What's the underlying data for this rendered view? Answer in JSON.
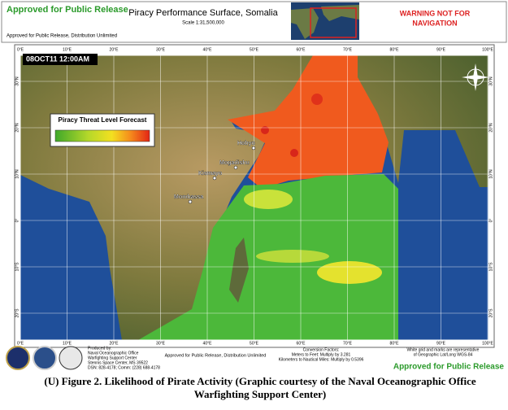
{
  "header": {
    "release_top": "Approved for Public Release",
    "title": "Piracy Performance Surface, Somalia",
    "scale": "Scale 1:31,500,000",
    "distribution": "Approved for Public Release, Distribution Unlimited",
    "warning": [
      "WARNING NOT FOR",
      "NAVIGATION"
    ]
  },
  "map": {
    "timestamp": "08OCT11 12:00AM",
    "legend_title": "Piracy Threat Level Forecast",
    "places": [
      "Hobyo",
      "Mogadishu",
      "Kismayo",
      "Mombassa"
    ],
    "lon_labels": [
      "0°E",
      "10°E",
      "20°E",
      "30°E",
      "40°E",
      "50°E",
      "60°E",
      "70°E",
      "80°E",
      "90°E",
      "100°E"
    ],
    "lat_labels": [
      "30°N",
      "20°N",
      "10°N",
      "0°",
      "10°S",
      "20°S"
    ]
  },
  "footer": {
    "produced_by": [
      "Produced by:",
      "Naval Oceanographic Office",
      "Warfighting Support Center",
      "Stennis Space Center, MS 39522",
      "DSN: 828-4178; Comm: (228) 688-4178"
    ],
    "distribution": "Approved for Public Release, Distribution Unlimited",
    "conversion": [
      "Conversion Factors:",
      "Meters to Feet: Multiply by 3.281",
      "Kilometers to Nautical Miles: Multiply by 0.5396"
    ],
    "grid_note": [
      "White grid and marks are representative",
      "of Geographic Lat/Long WGS-84"
    ],
    "release_bottom": "Approved for Public Release"
  },
  "caption": [
    "(U) Figure 2.  Likelihood of Pirate Activity (Graphic courtesy of the Naval Oceanographic Office",
    "Warfighting Support Center)"
  ]
}
